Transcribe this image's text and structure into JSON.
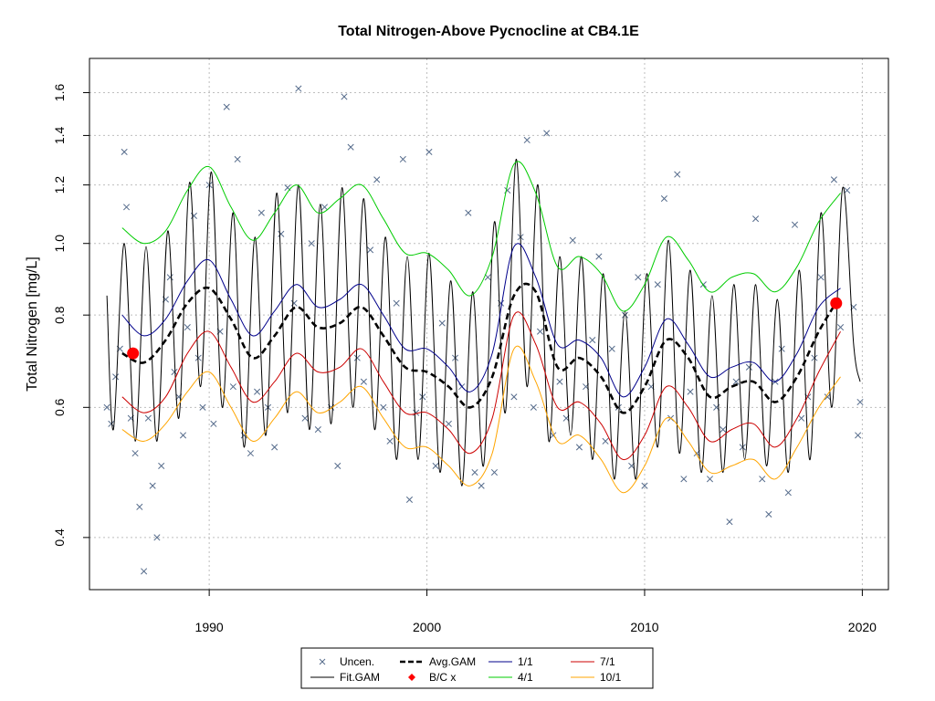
{
  "chart_data": {
    "type": "scatter",
    "title": "Total Nitrogen-Above Pycnocline at CB4.1E",
    "xlabel": "",
    "ylabel": "Total Nitrogen [mg/L]",
    "x_ticks": [
      "1990",
      "2000",
      "2010",
      "2020"
    ],
    "y_ticks": [
      "0.4",
      "0.6",
      "0.8",
      "1.0",
      "1.2",
      "1.4",
      "1.6"
    ],
    "xlim": [
      1984.5,
      2021.2
    ],
    "ylim": [
      0.34,
      1.78
    ],
    "y_scale": "log",
    "grid": true,
    "legend_position": "bottom-center",
    "colors": {
      "uncensored": "#556b8b",
      "fit_gam": "#000000",
      "avg_gam": "#000000",
      "bc_points": "#ff0000",
      "p_1_1": "#00008b",
      "p_4_1": "#00cc00",
      "p_7_1": "#cc0000",
      "p_10_1": "#ffa500",
      "grid": "#bebebe"
    },
    "legend": [
      {
        "label": "Uncen.",
        "symbol": "x",
        "series": "uncensored"
      },
      {
        "label": "Fit.GAM",
        "symbol": "line",
        "series": "fit_gam"
      },
      {
        "label": "Avg.GAM",
        "symbol": "dash",
        "series": "avg_gam"
      },
      {
        "label": "B/C x",
        "symbol": "diamond",
        "series": "bc_points"
      },
      {
        "label": "1/1",
        "symbol": "line",
        "series": "p_1_1"
      },
      {
        "label": "4/1",
        "symbol": "line",
        "series": "p_4_1"
      },
      {
        "label": "7/1",
        "symbol": "line",
        "series": "p_7_1"
      },
      {
        "label": "10/1",
        "symbol": "line",
        "series": "p_10_1"
      }
    ],
    "bc_points": [
      {
        "x": 1986.5,
        "y": 0.71
      },
      {
        "x": 2018.8,
        "y": 0.83
      }
    ],
    "avg_gam": {
      "x": [
        1986.0,
        1987.0,
        1988.0,
        1989.0,
        1990.0,
        1991.0,
        1992.0,
        1993.0,
        1994.0,
        1995.0,
        1996.0,
        1997.0,
        1998.0,
        1999.0,
        2000.0,
        2001.0,
        2002.0,
        2003.0,
        2004.0,
        2005.0,
        2006.0,
        2007.0,
        2008.0,
        2009.0,
        2010.0,
        2011.0,
        2012.0,
        2013.0,
        2014.0,
        2015.0,
        2016.0,
        2017.0,
        2018.0,
        2019.0
      ],
      "y": [
        0.71,
        0.69,
        0.74,
        0.83,
        0.87,
        0.79,
        0.7,
        0.75,
        0.82,
        0.77,
        0.78,
        0.82,
        0.75,
        0.68,
        0.67,
        0.64,
        0.6,
        0.66,
        0.85,
        0.86,
        0.68,
        0.7,
        0.66,
        0.59,
        0.64,
        0.74,
        0.7,
        0.62,
        0.64,
        0.65,
        0.61,
        0.66,
        0.76,
        0.85
      ]
    },
    "p_1_1": {
      "x": [
        1986.0,
        1987.0,
        1988.0,
        1989.0,
        1990.0,
        1991.0,
        1992.0,
        1993.0,
        1994.0,
        1995.0,
        1996.0,
        1997.0,
        1998.0,
        1999.0,
        2000.0,
        2001.0,
        2002.0,
        2003.0,
        2004.0,
        2005.0,
        2006.0,
        2007.0,
        2008.0,
        2009.0,
        2010.0,
        2011.0,
        2012.0,
        2013.0,
        2014.0,
        2015.0,
        2016.0,
        2017.0,
        2018.0,
        2019.0
      ],
      "y": [
        0.8,
        0.75,
        0.79,
        0.89,
        0.95,
        0.84,
        0.75,
        0.81,
        0.88,
        0.82,
        0.84,
        0.88,
        0.8,
        0.72,
        0.72,
        0.68,
        0.63,
        0.71,
        0.99,
        0.9,
        0.73,
        0.74,
        0.7,
        0.62,
        0.68,
        0.79,
        0.73,
        0.66,
        0.68,
        0.69,
        0.65,
        0.71,
        0.82,
        0.87
      ]
    },
    "p_4_1": {
      "x": [
        1986.0,
        1987.0,
        1988.0,
        1989.0,
        1990.0,
        1991.0,
        1992.0,
        1993.0,
        1994.0,
        1995.0,
        1996.0,
        1997.0,
        1998.0,
        1999.0,
        2000.0,
        2001.0,
        2002.0,
        2003.0,
        2004.0,
        2005.0,
        2006.0,
        2007.0,
        2008.0,
        2009.0,
        2010.0,
        2011.0,
        2012.0,
        2013.0,
        2014.0,
        2015.0,
        2016.0,
        2017.0,
        2018.0,
        2019.0
      ],
      "y": [
        1.05,
        1.0,
        1.04,
        1.18,
        1.27,
        1.12,
        1.01,
        1.1,
        1.2,
        1.1,
        1.15,
        1.2,
        1.08,
        0.97,
        0.97,
        0.92,
        0.85,
        0.96,
        1.28,
        1.17,
        0.93,
        0.96,
        0.91,
        0.81,
        0.88,
        1.02,
        0.95,
        0.86,
        0.9,
        0.91,
        0.86,
        0.93,
        1.07,
        1.17
      ]
    },
    "p_7_1": {
      "x": [
        1986.0,
        1987.0,
        1988.0,
        1989.0,
        1990.0,
        1991.0,
        1992.0,
        1993.0,
        1994.0,
        1995.0,
        1996.0,
        1997.0,
        1998.0,
        1999.0,
        2000.0,
        2001.0,
        2002.0,
        2003.0,
        2004.0,
        2005.0,
        2006.0,
        2007.0,
        2008.0,
        2009.0,
        2010.0,
        2011.0,
        2012.0,
        2013.0,
        2014.0,
        2015.0,
        2016.0,
        2017.0,
        2018.0,
        2019.0
      ],
      "y": [
        0.62,
        0.59,
        0.62,
        0.71,
        0.76,
        0.68,
        0.61,
        0.65,
        0.71,
        0.67,
        0.68,
        0.72,
        0.65,
        0.59,
        0.59,
        0.56,
        0.52,
        0.58,
        0.8,
        0.73,
        0.6,
        0.61,
        0.57,
        0.51,
        0.55,
        0.64,
        0.6,
        0.54,
        0.56,
        0.57,
        0.53,
        0.58,
        0.67,
        0.76
      ]
    },
    "p_10_1": {
      "x": [
        1986.0,
        1987.0,
        1988.0,
        1989.0,
        1990.0,
        1991.0,
        1992.0,
        1993.0,
        1994.0,
        1995.0,
        1996.0,
        1997.0,
        1998.0,
        1999.0,
        2000.0,
        2001.0,
        2002.0,
        2003.0,
        2004.0,
        2005.0,
        2006.0,
        2007.0,
        2008.0,
        2009.0,
        2010.0,
        2011.0,
        2012.0,
        2013.0,
        2014.0,
        2015.0,
        2016.0,
        2017.0,
        2018.0,
        2019.0
      ],
      "y": [
        0.56,
        0.54,
        0.57,
        0.63,
        0.67,
        0.6,
        0.54,
        0.58,
        0.63,
        0.59,
        0.61,
        0.64,
        0.58,
        0.53,
        0.53,
        0.5,
        0.47,
        0.52,
        0.72,
        0.65,
        0.54,
        0.55,
        0.51,
        0.46,
        0.5,
        0.58,
        0.54,
        0.49,
        0.5,
        0.51,
        0.48,
        0.53,
        0.6,
        0.66
      ]
    },
    "fit_gam": {
      "x": [
        1985.3,
        1985.6,
        1986.1,
        1986.6,
        1987.1,
        1987.6,
        1988.1,
        1988.6,
        1989.1,
        1989.6,
        1990.1,
        1990.6,
        1991.1,
        1991.6,
        1992.1,
        1992.6,
        1993.1,
        1993.6,
        1994.1,
        1994.6,
        1995.1,
        1995.6,
        1996.1,
        1996.6,
        1997.1,
        1997.6,
        1998.1,
        1998.6,
        1999.1,
        1999.6,
        2000.1,
        2000.6,
        2001.1,
        2001.6,
        2002.1,
        2002.6,
        2003.1,
        2003.6,
        2004.1,
        2004.6,
        2005.1,
        2005.6,
        2006.1,
        2006.6,
        2007.1,
        2007.6,
        2008.1,
        2008.6,
        2009.1,
        2009.6,
        2010.1,
        2010.6,
        2011.1,
        2011.6,
        2012.1,
        2012.6,
        2013.1,
        2013.6,
        2014.1,
        2014.6,
        2015.1,
        2015.6,
        2016.1,
        2016.6,
        2017.1,
        2017.6,
        2018.1,
        2018.6,
        2019.1,
        2019.6,
        2019.9
      ],
      "y": [
        0.85,
        0.56,
        1.0,
        0.54,
        0.99,
        0.54,
        1.04,
        0.58,
        1.21,
        0.64,
        1.25,
        0.6,
        1.1,
        0.53,
        1.02,
        0.55,
        1.17,
        0.59,
        1.2,
        0.56,
        1.13,
        0.57,
        1.19,
        0.6,
        1.15,
        0.56,
        1.02,
        0.51,
        0.96,
        0.51,
        0.97,
        0.49,
        0.89,
        0.47,
        0.86,
        0.5,
        1.07,
        0.59,
        1.3,
        0.64,
        1.2,
        0.54,
        0.96,
        0.55,
        0.96,
        0.51,
        0.91,
        0.48,
        0.81,
        0.48,
        0.91,
        0.53,
        1.01,
        0.52,
        0.92,
        0.49,
        0.85,
        0.49,
        0.88,
        0.51,
        0.88,
        0.5,
        0.84,
        0.49,
        0.92,
        0.51,
        1.1,
        0.6,
        1.19,
        0.73,
        0.65
      ]
    },
    "uncensored": {
      "x": [
        1985.3,
        1985.5,
        1985.7,
        1985.9,
        1986.1,
        1986.2,
        1986.4,
        1986.6,
        1986.8,
        1987.0,
        1987.2,
        1987.4,
        1987.6,
        1987.8,
        1988.0,
        1988.2,
        1988.4,
        1988.6,
        1988.8,
        1989.0,
        1989.3,
        1989.5,
        1989.7,
        1990.0,
        1990.2,
        1990.5,
        1990.8,
        1991.1,
        1991.3,
        1991.6,
        1991.9,
        1992.2,
        1992.4,
        1992.7,
        1993.0,
        1993.3,
        1993.6,
        1993.9,
        1994.1,
        1994.4,
        1994.7,
        1995.0,
        1995.3,
        1995.6,
        1995.9,
        1996.2,
        1996.5,
        1996.8,
        1997.1,
        1997.4,
        1997.7,
        1998.0,
        1998.3,
        1998.6,
        1998.9,
        1999.2,
        1999.5,
        1999.8,
        2000.1,
        2000.4,
        2000.7,
        2001.0,
        2001.3,
        2001.6,
        2001.9,
        2002.2,
        2002.5,
        2002.8,
        2003.1,
        2003.4,
        2003.7,
        2004.0,
        2004.3,
        2004.6,
        2004.9,
        2005.2,
        2005.5,
        2005.8,
        2006.1,
        2006.4,
        2006.7,
        2007.0,
        2007.3,
        2007.6,
        2007.9,
        2008.2,
        2008.5,
        2008.8,
        2009.1,
        2009.4,
        2009.7,
        2010.0,
        2010.3,
        2010.6,
        2010.9,
        2011.2,
        2011.5,
        2011.8,
        2012.1,
        2012.4,
        2012.7,
        2013.0,
        2013.3,
        2013.6,
        2013.9,
        2014.2,
        2014.5,
        2014.8,
        2015.1,
        2015.4,
        2015.7,
        2016.0,
        2016.3,
        2016.6,
        2016.9,
        2017.2,
        2017.5,
        2017.8,
        2018.1,
        2018.4,
        2018.7,
        2019.0,
        2019.3,
        2019.6,
        2019.8,
        2019.9
      ],
      "y": [
        0.6,
        0.57,
        0.66,
        0.72,
        1.33,
        1.12,
        0.58,
        0.52,
        0.44,
        0.36,
        0.58,
        0.47,
        0.4,
        0.5,
        0.84,
        0.9,
        0.67,
        0.62,
        0.55,
        0.77,
        1.09,
        0.7,
        0.6,
        1.2,
        0.57,
        0.76,
        1.53,
        0.64,
        1.3,
        0.55,
        0.52,
        0.63,
        1.1,
        0.6,
        0.53,
        1.03,
        1.19,
        0.83,
        1.62,
        0.58,
        1.0,
        0.56,
        1.12,
        0.6,
        0.5,
        1.58,
        1.35,
        0.7,
        0.65,
        0.98,
        1.22,
        0.6,
        0.54,
        0.83,
        1.3,
        0.45,
        0.59,
        0.62,
        1.33,
        0.5,
        0.78,
        0.57,
        0.7,
        0.64,
        1.1,
        0.49,
        0.47,
        0.9,
        0.49,
        0.83,
        1.18,
        0.62,
        1.02,
        1.38,
        0.6,
        0.76,
        1.41,
        0.55,
        0.65,
        0.58,
        1.01,
        0.53,
        0.64,
        0.74,
        0.96,
        0.54,
        0.72,
        0.6,
        0.8,
        0.5,
        0.9,
        0.47,
        0.64,
        0.88,
        1.15,
        0.58,
        1.24,
        0.48,
        0.63,
        0.52,
        0.88,
        0.48,
        0.6,
        0.56,
        0.42,
        0.65,
        0.53,
        0.68,
        1.08,
        0.48,
        0.43,
        0.65,
        0.72,
        0.46,
        1.06,
        0.58,
        0.62,
        0.7,
        0.9,
        0.62,
        1.22,
        0.77,
        1.18,
        0.82,
        0.55,
        0.61
      ]
    }
  }
}
